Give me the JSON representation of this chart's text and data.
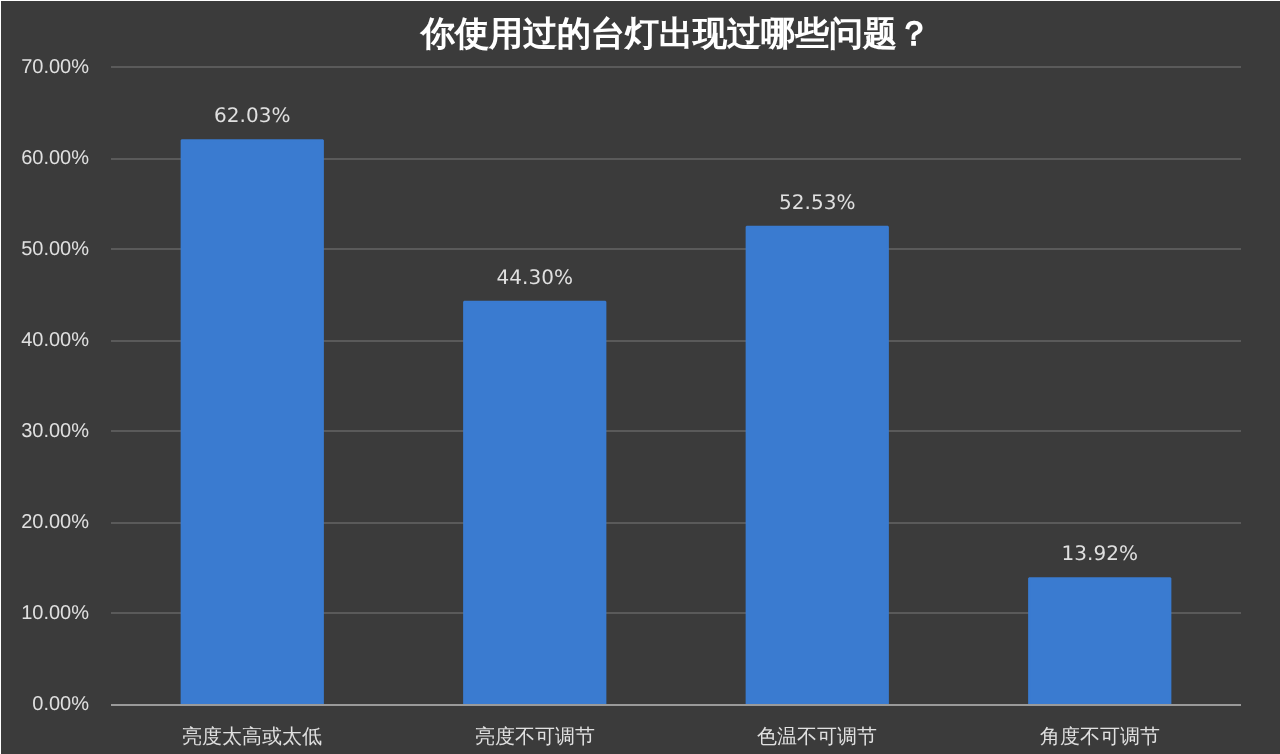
{
  "chart_data": {
    "type": "bar",
    "title": "你使用过的台灯出现过哪些问题？",
    "categories": [
      "亮度太高或太低",
      "亮度不可调节",
      "色温不可调节",
      "角度不可调节"
    ],
    "values": [
      62.03,
      44.3,
      52.53,
      13.92
    ],
    "value_labels": [
      "62.03%",
      "44.30%",
      "52.53%",
      "13.92%"
    ],
    "color": "#3a7bd0",
    "ylim": [
      0,
      70
    ],
    "yticks": [
      {
        "value": 0,
        "label": "0.00%"
      },
      {
        "value": 10,
        "label": "10.00%"
      },
      {
        "value": 20,
        "label": "20.00%"
      },
      {
        "value": 30,
        "label": "30.00%"
      },
      {
        "value": 40,
        "label": "40.00%"
      },
      {
        "value": 50,
        "label": "50.00%"
      },
      {
        "value": 60,
        "label": "60.00%"
      },
      {
        "value": 70,
        "label": "70.00%"
      }
    ],
    "grid": "y"
  }
}
